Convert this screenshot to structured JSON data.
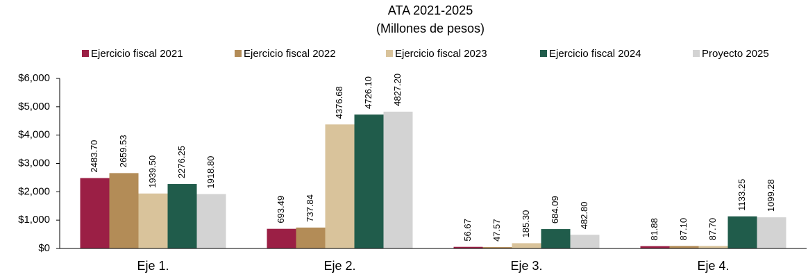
{
  "chart_data": {
    "type": "bar",
    "title": "ATA 2021-2025",
    "subtitle": "(Millones de pesos)",
    "categories": [
      "Eje 1.",
      "Eje 2.",
      "Eje 3.",
      "Eje 4."
    ],
    "series": [
      {
        "name": "Ejercicio fiscal 2021",
        "color": "#9b1f45",
        "values": [
          2483.7,
          693.49,
          56.67,
          81.88
        ],
        "value_labels": [
          "2483.70",
          "693.49",
          "56.67",
          "81.88"
        ]
      },
      {
        "name": "Ejercicio fiscal 2022",
        "color": "#b38c57",
        "values": [
          2659.53,
          737.84,
          47.57,
          87.1
        ],
        "value_labels": [
          "2659.53",
          "737.84",
          "47.57",
          "87.10"
        ]
      },
      {
        "name": "Ejercicio fiscal 2023",
        "color": "#d9c39b",
        "values": [
          1939.5,
          4376.68,
          185.3,
          87.7
        ],
        "value_labels": [
          "1939.50",
          "4376.68",
          "185.30",
          "87.70"
        ]
      },
      {
        "name": "Ejercicio fiscal 2024",
        "color": "#205c4b",
        "values": [
          2276.25,
          4726.1,
          684.09,
          1133.25
        ],
        "value_labels": [
          "2276.25",
          "4726.10",
          "684.09",
          "1133.25"
        ]
      },
      {
        "name": "Proyecto 2025",
        "color": "#d3d3d3",
        "values": [
          1918.8,
          4827.2,
          482.8,
          1099.28
        ],
        "value_labels": [
          "1918.80",
          "4827.20",
          "482.80",
          "1099.28"
        ]
      }
    ],
    "ylim": [
      0,
      6000
    ],
    "yticks": [
      {
        "value": 0,
        "label": "$0"
      },
      {
        "value": 1000,
        "label": "$1,000"
      },
      {
        "value": 2000,
        "label": "$2,000"
      },
      {
        "value": 3000,
        "label": "$3,000"
      },
      {
        "value": 4000,
        "label": "$4,000"
      },
      {
        "value": 5000,
        "label": "$5,000"
      },
      {
        "value": 6000,
        "label": "$6,000"
      }
    ],
    "legend": "top"
  }
}
